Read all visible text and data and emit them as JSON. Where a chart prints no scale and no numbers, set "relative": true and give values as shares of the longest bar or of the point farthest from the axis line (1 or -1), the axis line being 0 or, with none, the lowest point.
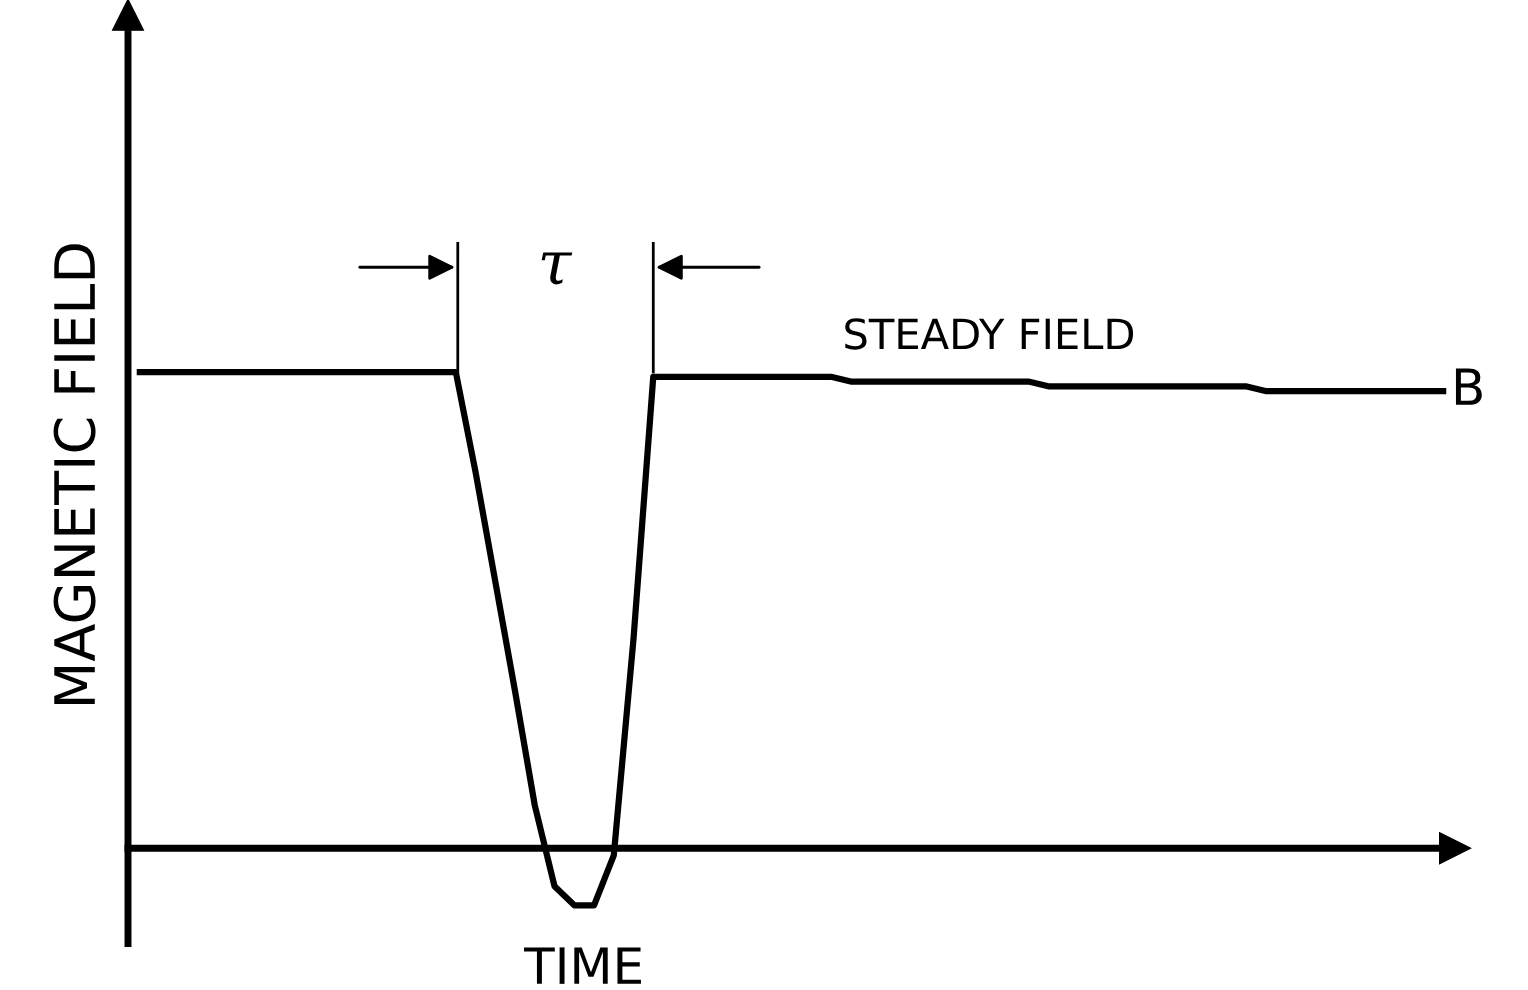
{
  "chart_data": {
    "type": "line",
    "relative": true,
    "xlabel": "TIME",
    "ylabel": "MAGNETIC FIELD",
    "categories": [
      null,
      null,
      null,
      null,
      null,
      null,
      null,
      null,
      null,
      null,
      null,
      null,
      null,
      null,
      null,
      null,
      null,
      null,
      null,
      null,
      null,
      null,
      null,
      null,
      null,
      null,
      null,
      null,
      null,
      null,
      null,
      null,
      null,
      null,
      null,
      null,
      null,
      null,
      null,
      null,
      null,
      null,
      null,
      null,
      null,
      null,
      null,
      null,
      null,
      null,
      null,
      null,
      null,
      null,
      null,
      null,
      null,
      null,
      null,
      null,
      null,
      null,
      null,
      null,
      null,
      null,
      null
    ],
    "series": [
      {
        "color": "#000000",
        "values": [
          1.0,
          1.0,
          1.0,
          1.0,
          1.0,
          1.0,
          1.0,
          1.0,
          1.0,
          1.0,
          1.0,
          1.0,
          1.0,
          1.0,
          1.0,
          1.0,
          1.0,
          0.79,
          0.56,
          0.33,
          0.09,
          -0.08,
          -0.12,
          -0.12,
          -0.015,
          0.44,
          0.99,
          0.99,
          0.99,
          0.99,
          0.99,
          0.99,
          0.99,
          0.99,
          0.99,
          0.99,
          0.98,
          0.98,
          0.98,
          0.98,
          0.98,
          0.98,
          0.98,
          0.98,
          0.98,
          0.98,
          0.97,
          0.97,
          0.97,
          0.97,
          0.97,
          0.97,
          0.97,
          0.97,
          0.97,
          0.97,
          0.97,
          0.96,
          0.96,
          0.96,
          0.96,
          0.96,
          0.96,
          0.96,
          0.96,
          0.96,
          0.96
        ]
      }
    ],
    "annotations": [
      "τ",
      "STEADY FIELD",
      "B"
    ],
    "legend": false,
    "marker": "none",
    "line_style": "solid"
  }
}
